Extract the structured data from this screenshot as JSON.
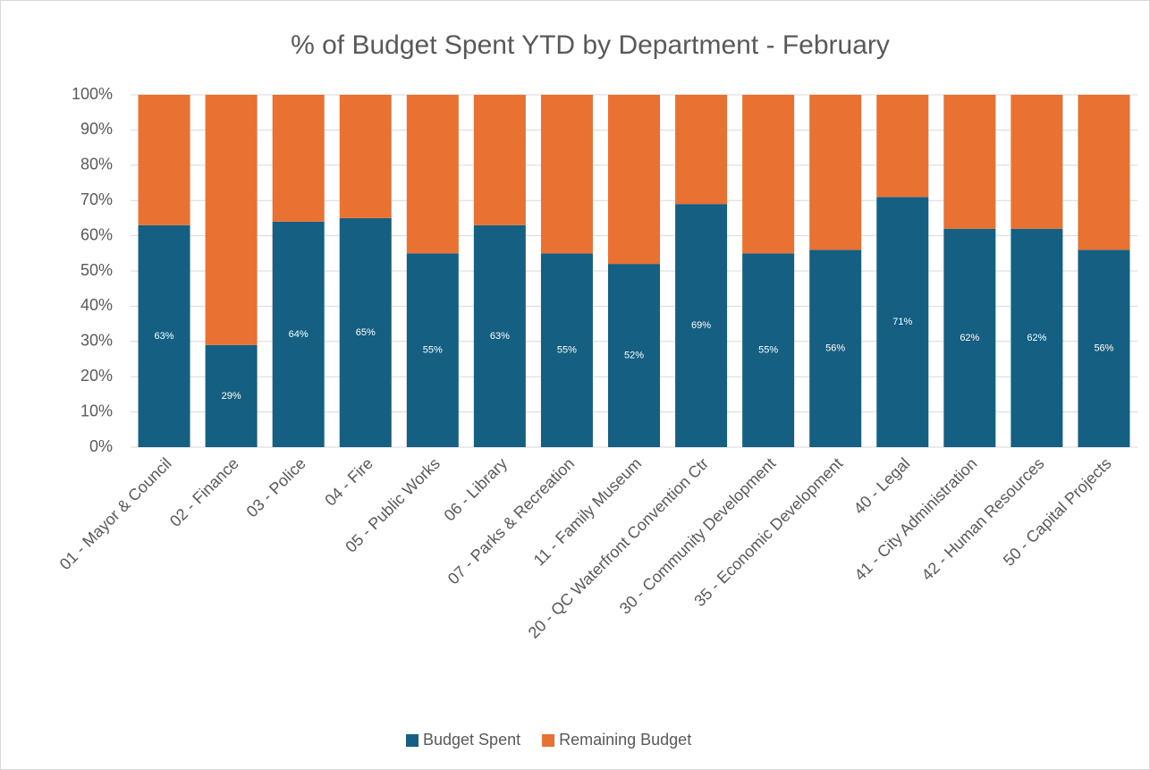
{
  "chart_data": {
    "type": "stacked_bar",
    "title": "% of Budget Spent YTD by Department - February",
    "categories": [
      "01 - Mayor & Council",
      "02 - Finance",
      "03 - Police",
      "04 - Fire",
      "05 - Public Works",
      "06 - Library",
      "07 - Parks & Recreation",
      "11 - Family Museum",
      "20 - QC Waterfront Convention Ctr",
      "30 - Community Development",
      "35 - Economic Development",
      "40 - Legal",
      "41 - City Administration",
      "42 - Human Resources",
      "50 - Capital Projects"
    ],
    "series": [
      {
        "name": "Budget Spent",
        "color": "#156082",
        "values": [
          63,
          29,
          64,
          65,
          55,
          63,
          55,
          52,
          69,
          55,
          56,
          71,
          62,
          62,
          56
        ],
        "value_labels": [
          "63%",
          "29%",
          "64%",
          "65%",
          "55%",
          "63%",
          "55%",
          "52%",
          "69%",
          "55%",
          "56%",
          "71%",
          "62%",
          "62%",
          "56%"
        ]
      },
      {
        "name": "Remaining Budget",
        "color": "#e97132",
        "values": [
          37,
          71,
          36,
          35,
          45,
          37,
          45,
          48,
          31,
          45,
          44,
          29,
          38,
          38,
          44
        ]
      }
    ],
    "ylim": [
      0,
      100
    ],
    "yticks": [
      {
        "value": 0,
        "label": "0%"
      },
      {
        "value": 10,
        "label": "10%"
      },
      {
        "value": 20,
        "label": "20%"
      },
      {
        "value": 30,
        "label": "30%"
      },
      {
        "value": 40,
        "label": "40%"
      },
      {
        "value": 50,
        "label": "50%"
      },
      {
        "value": 60,
        "label": "60%"
      },
      {
        "value": 70,
        "label": "70%"
      },
      {
        "value": 80,
        "label": "80%"
      },
      {
        "value": 90,
        "label": "90%"
      },
      {
        "value": 100,
        "label": "100%"
      }
    ],
    "grid": true,
    "legend": "bottom"
  }
}
